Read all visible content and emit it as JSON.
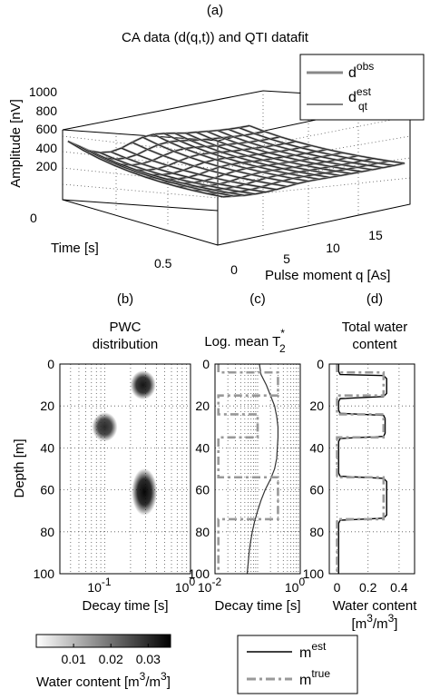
{
  "chart_data": [
    {
      "id": "a",
      "type": "surface",
      "panel_label": "(a)",
      "title": "CA data (d(q,t)) and QTI datafit",
      "zlabel": "Amplitude [nV]",
      "ylabel": "Time [s]",
      "xlabel": "Pulse moment q [As]",
      "zticks": [
        "200",
        "400",
        "600",
        "800",
        "1000"
      ],
      "zlim": [
        0,
        1000
      ],
      "yticks": [
        "0",
        "0.5"
      ],
      "ylim": [
        0,
        0.8
      ],
      "xticks": [
        "0",
        "5",
        "10",
        "15"
      ],
      "xlim": [
        0,
        18
      ],
      "legend": {
        "position": "top-right",
        "entries": [
          {
            "base": "d",
            "sup": "obs",
            "sub": "",
            "color": "#888888",
            "width": 3
          },
          {
            "base": "d",
            "sup": "est",
            "sub": "qt",
            "color": "#000000",
            "width": 1
          }
        ]
      },
      "q": [
        0.5,
        1.5,
        2.5,
        3.5,
        4.5,
        5.5,
        6.5,
        7.5,
        8.5,
        9.5,
        10.5,
        11.5,
        12.5,
        13.5,
        14.5,
        15.5,
        16.5,
        17.5
      ],
      "t": [
        0.0,
        0.08,
        0.16,
        0.24,
        0.32,
        0.4,
        0.48,
        0.56,
        0.64,
        0.72,
        0.8
      ],
      "amplitude_at_t0": [
        820,
        720,
        620,
        560,
        540,
        560,
        610,
        650,
        660,
        640,
        610,
        580,
        560,
        540,
        520,
        505,
        495,
        490
      ],
      "decay_factor_at_t_max": 0.22
    },
    {
      "id": "b",
      "type": "heatmap",
      "panel_label": "(b)",
      "title_lines": [
        "PWC",
        "distribution"
      ],
      "xlabel": "Decay time [s]",
      "ylabel": "Depth [m]",
      "xscale": "log",
      "xlim": [
        0.03,
        1
      ],
      "ylim": [
        0,
        100
      ],
      "yticks": [
        "0",
        "20",
        "40",
        "60",
        "80",
        "100"
      ],
      "xticks": [
        {
          "value": 0.1,
          "base": "10",
          "exp": "-1"
        },
        {
          "value": 1,
          "base": "10",
          "exp": "0"
        }
      ],
      "blobs": [
        {
          "t2": 0.28,
          "depth": 10,
          "amplitude": 0.033
        },
        {
          "t2": 0.1,
          "depth": 30,
          "amplitude": 0.03
        },
        {
          "t2": 0.29,
          "depth": 61,
          "amplitude": 0.035
        }
      ],
      "colorbar": {
        "ticks": [
          "0.01",
          "0.02",
          "0.03"
        ],
        "range": [
          0,
          0.036
        ],
        "label": "Water content [m",
        "label_sup1": "3",
        "label_mid": "/m",
        "label_sup2": "3",
        "label_end": "]"
      }
    },
    {
      "id": "c",
      "type": "line",
      "panel_label": "(c)",
      "title": "Log. mean T",
      "title_sup": "*",
      "title_sub": "2",
      "xlabel": "Decay time [s]",
      "xscale": "log",
      "xlim": [
        0.01,
        1
      ],
      "ylim": [
        0,
        100
      ],
      "yticks": [
        "0",
        "20",
        "40",
        "60",
        "80",
        "100"
      ],
      "xticks": [
        {
          "value": 0.01,
          "base": "10",
          "exp": "-2"
        },
        {
          "value": 1,
          "base": "10",
          "exp": "0"
        }
      ],
      "series": [
        {
          "name": "est",
          "color": "#333333",
          "style": "solid",
          "x": [
            0.11,
            0.12,
            0.16,
            0.2,
            0.25,
            0.28,
            0.3,
            0.3,
            0.29,
            0.28,
            0.25,
            0.2,
            0.15,
            0.12,
            0.1,
            0.085,
            0.075,
            0.068,
            0.063,
            0.06,
            0.058,
            0.057
          ],
          "y": [
            0,
            5,
            10,
            15,
            20,
            25,
            30,
            35,
            40,
            45,
            50,
            55,
            60,
            65,
            70,
            75,
            80,
            85,
            90,
            95,
            98,
            100
          ]
        },
        {
          "name": "true",
          "color": "#999999",
          "style": "dashdot",
          "x": [
            0.012,
            0.012,
            0.3,
            0.3,
            0.012,
            0.012,
            0.1,
            0.1,
            0.012,
            0.012,
            0.3,
            0.3,
            0.012,
            0.012
          ],
          "y": [
            0,
            4,
            4,
            15,
            15,
            24,
            24,
            35,
            35,
            54,
            54,
            74,
            74,
            100
          ]
        }
      ]
    },
    {
      "id": "d",
      "type": "line",
      "panel_label": "(d)",
      "title_lines": [
        "Total water",
        "content"
      ],
      "xlabel": "Water content",
      "xlabel2": "[m",
      "xlabel2_sup1": "3",
      "xlabel2_mid": "/m",
      "xlabel2_sup2": "3",
      "xlabel2_end": "]",
      "xlim": [
        -0.05,
        0.5
      ],
      "ylim": [
        0,
        100
      ],
      "yticks": [
        "0",
        "20",
        "40",
        "60",
        "80",
        "100"
      ],
      "xticks": [
        "0",
        "0.2",
        "0.4"
      ],
      "xtick_values": [
        0,
        0.2,
        0.4
      ],
      "series": [
        {
          "name": "est",
          "color": "#000000",
          "style": "solid",
          "x": [
            0.01,
            0.01,
            0.02,
            0.3,
            0.32,
            0.32,
            0.3,
            0.02,
            0.01,
            0.01,
            0.02,
            0.3,
            0.31,
            0.31,
            0.3,
            0.02,
            0.01,
            0.01,
            0.02,
            0.3,
            0.32,
            0.32,
            0.3,
            0.02,
            0.01,
            0.01
          ],
          "y": [
            0,
            3.5,
            5,
            5.5,
            7,
            14,
            15.5,
            16.5,
            18,
            22,
            23.5,
            24.5,
            26,
            33,
            34.5,
            35.5,
            37,
            52,
            53.5,
            54.5,
            56,
            72,
            73.5,
            74.5,
            76,
            100
          ]
        },
        {
          "name": "true",
          "color": "#999999",
          "style": "dashdot",
          "x": [
            0,
            0,
            0.3,
            0.3,
            0,
            0,
            0.3,
            0.3,
            0,
            0,
            0.3,
            0.3,
            0,
            0
          ],
          "y": [
            0,
            4,
            4,
            15,
            15,
            24,
            24,
            35,
            35,
            54,
            54,
            74,
            74,
            100
          ]
        }
      ]
    }
  ],
  "legend_bottom": {
    "entries": [
      {
        "base": "m",
        "sup": "est",
        "color": "#000000",
        "style": "solid"
      },
      {
        "base": "m",
        "sup": "true",
        "color": "#999999",
        "style": "dashdot"
      }
    ]
  }
}
